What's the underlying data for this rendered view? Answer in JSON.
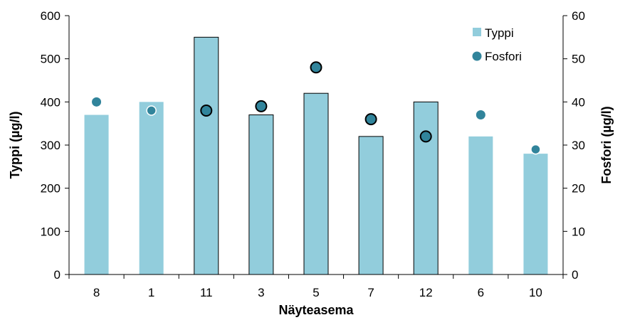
{
  "chart_data": {
    "type": "bar",
    "categories": [
      "8",
      "1",
      "11",
      "3",
      "5",
      "7",
      "12",
      "6",
      "10"
    ],
    "series": [
      {
        "name": "Typpi",
        "type": "bar",
        "axis": "left",
        "values": [
          370,
          400,
          550,
          370,
          420,
          320,
          400,
          320,
          280
        ],
        "outlined": [
          false,
          false,
          true,
          true,
          true,
          true,
          true,
          false,
          false
        ],
        "color": "#92CDDC"
      },
      {
        "name": "Fosfori",
        "type": "scatter",
        "axis": "right",
        "values": [
          40,
          38,
          38,
          39,
          48,
          36,
          32,
          37,
          29
        ],
        "marker_outline": [
          "none",
          "white",
          "black",
          "black",
          "black",
          "black",
          "black",
          "none",
          "white"
        ],
        "color": "#31849B"
      }
    ],
    "xlabel": "Näyteasema",
    "ylabel": "Typpi (µg/l)",
    "y2label": "Fosfori (µg/l)",
    "ylim": [
      0,
      600
    ],
    "y2lim": [
      0,
      60
    ],
    "yticks": [
      "0",
      "100",
      "200",
      "300",
      "400",
      "500",
      "600"
    ],
    "y2ticks": [
      "0",
      "10",
      "20",
      "30",
      "40",
      "50",
      "60"
    ],
    "grid": false,
    "legend_position": "top-right"
  }
}
